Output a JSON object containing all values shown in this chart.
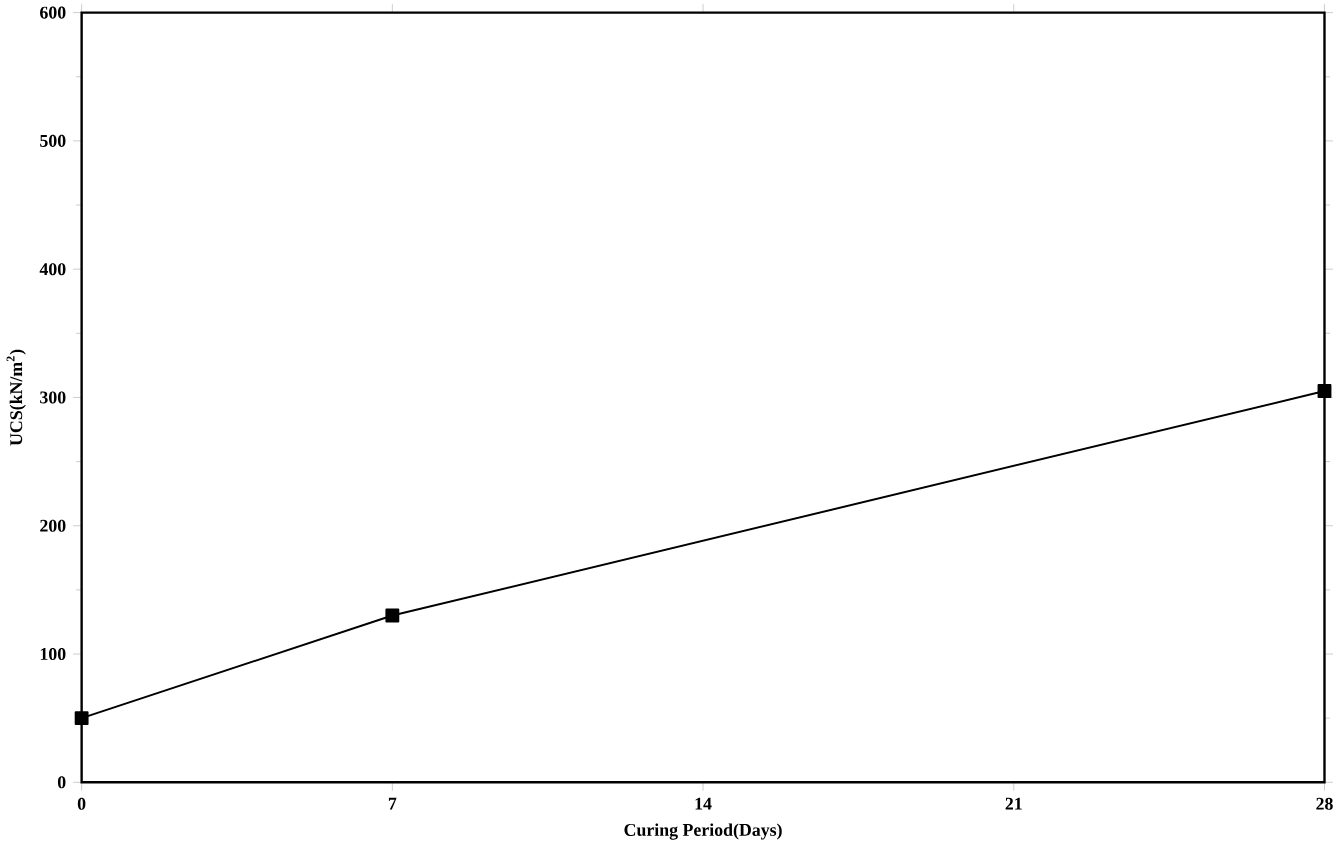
{
  "chart_data": {
    "type": "line",
    "xlabel": "Curing Period(Days)",
    "ylabel": "UCS(kN/m$^{2}$)",
    "x": [
      0,
      7,
      28
    ],
    "series": [
      {
        "color": "#000000",
        "values": [
          50,
          130,
          305
        ]
      }
    ],
    "xlim": [
      0,
      28
    ],
    "xticks": [
      0,
      7,
      14,
      21,
      28
    ],
    "ylim": [
      0,
      600
    ],
    "yticks": [
      0,
      100,
      200,
      300,
      400,
      500,
      600
    ],
    "marker": "square",
    "line_style": "solid"
  }
}
